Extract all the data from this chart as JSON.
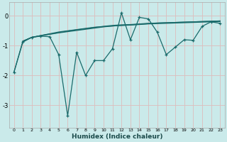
{
  "xlabel": "Humidex (Indice chaleur)",
  "background_color": "#caeaea",
  "grid_color": "#d9b8b8",
  "line_color": "#1a6b6b",
  "xlim": [
    -0.5,
    23.5
  ],
  "ylim": [
    -3.75,
    0.45
  ],
  "yticks": [
    0,
    -1,
    -2,
    -3
  ],
  "xticks": [
    0,
    1,
    2,
    3,
    4,
    5,
    6,
    7,
    8,
    9,
    10,
    11,
    12,
    13,
    14,
    15,
    16,
    17,
    18,
    19,
    20,
    21,
    22,
    23
  ],
  "jagged_x": [
    0,
    1,
    2,
    3,
    4,
    5,
    6,
    7,
    8,
    9,
    10,
    11,
    12,
    13,
    14,
    15,
    16,
    17,
    18,
    19,
    20,
    21,
    22,
    23
  ],
  "jagged_y": [
    -1.9,
    -0.88,
    -0.72,
    -0.68,
    -0.7,
    -1.3,
    -3.35,
    -1.22,
    -2.0,
    -1.5,
    -1.5,
    -1.1,
    0.1,
    -0.8,
    -0.05,
    -0.1,
    -0.55,
    -1.3,
    -1.05,
    -0.8,
    -0.82,
    -0.35,
    -0.2,
    -0.25
  ],
  "trend1_x": [
    0,
    1,
    2,
    3,
    4,
    5,
    6,
    7,
    8,
    9,
    10,
    11,
    12,
    13,
    14,
    15,
    16,
    17,
    18,
    19,
    20,
    21,
    22,
    23
  ],
  "trend1_y": [
    -1.9,
    -0.85,
    -0.72,
    -0.66,
    -0.6,
    -0.54,
    -0.5,
    -0.46,
    -0.42,
    -0.38,
    -0.36,
    -0.34,
    -0.32,
    -0.3,
    -0.28,
    -0.26,
    -0.24,
    -0.23,
    -0.22,
    -0.21,
    -0.2,
    -0.19,
    -0.18,
    -0.17
  ],
  "trend2_x": [
    1,
    2,
    3,
    4,
    5,
    6,
    7,
    8,
    9,
    10,
    11,
    12,
    13,
    14,
    15,
    16,
    17,
    18,
    19,
    20,
    21,
    22,
    23
  ],
  "trend2_y": [
    -0.85,
    -0.72,
    -0.67,
    -0.62,
    -0.57,
    -0.53,
    -0.49,
    -0.45,
    -0.41,
    -0.37,
    -0.34,
    -0.32,
    -0.31,
    -0.29,
    -0.27,
    -0.26,
    -0.25,
    -0.24,
    -0.23,
    -0.22,
    -0.21,
    -0.2,
    -0.19
  ],
  "trend3_x": [
    1,
    2,
    3,
    4,
    5,
    6,
    7,
    8,
    9,
    10,
    11,
    12,
    13,
    14,
    15,
    16,
    17,
    18,
    19,
    20,
    21,
    22,
    23
  ],
  "trend3_y": [
    -0.85,
    -0.72,
    -0.66,
    -0.61,
    -0.56,
    -0.51,
    -0.47,
    -0.43,
    -0.39,
    -0.35,
    -0.32,
    -0.3,
    -0.29,
    -0.27,
    -0.25,
    -0.24,
    -0.23,
    -0.22,
    -0.21,
    -0.2,
    -0.19,
    -0.18,
    -0.17
  ]
}
